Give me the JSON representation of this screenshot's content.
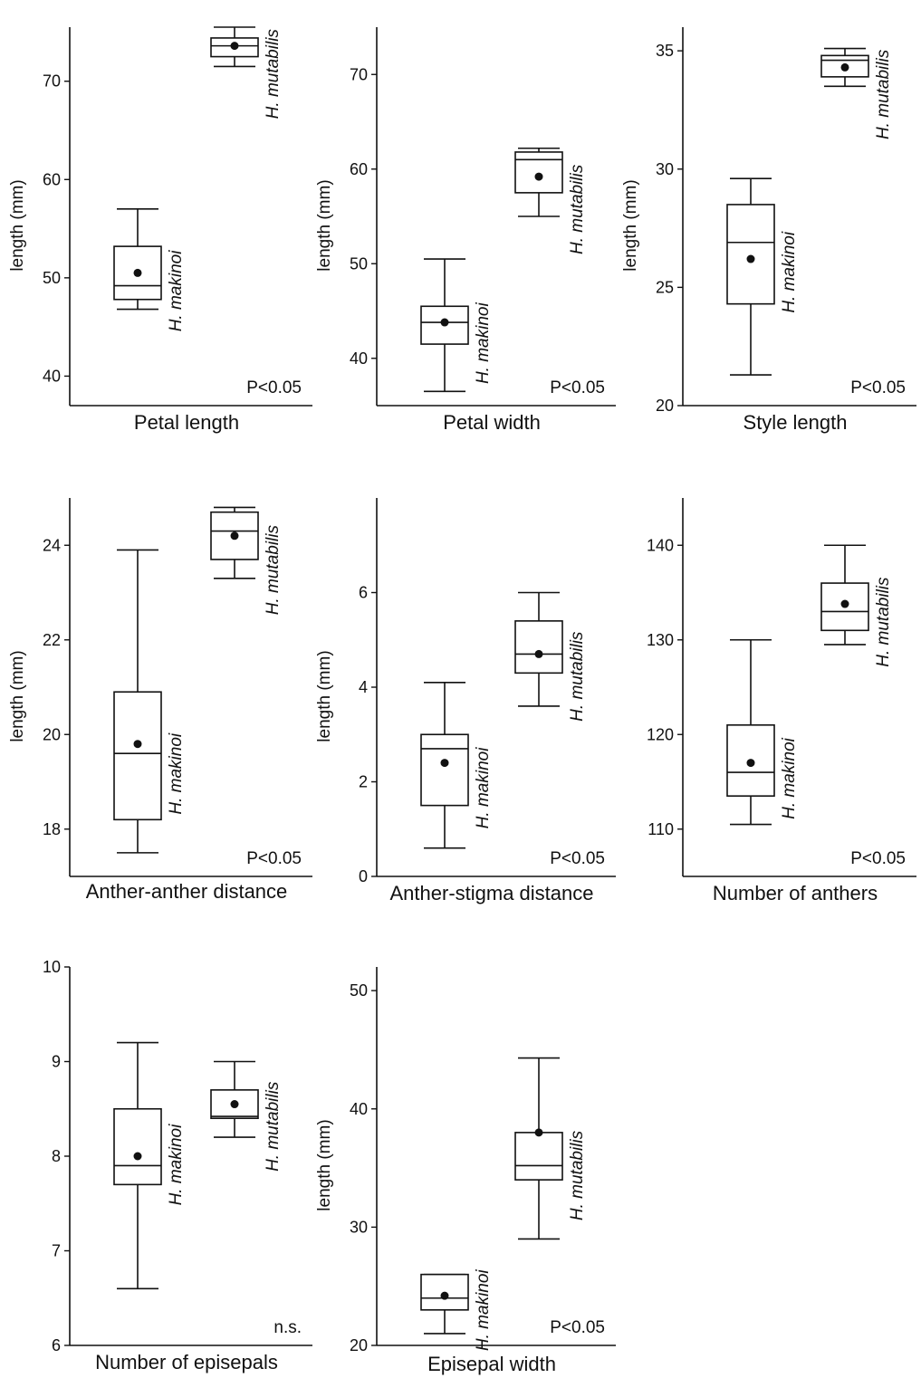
{
  "chart_data": [
    {
      "type": "box",
      "xlabel": "Petal length",
      "ylabel": "length (mm)",
      "ylim": [
        37,
        75
      ],
      "yticks": [
        40,
        50,
        60,
        70
      ],
      "significance": "P<0.05",
      "series": [
        {
          "name": "H. makinoi",
          "whisker_low": 46.8,
          "q1": 47.8,
          "median": 49.2,
          "q3": 53.2,
          "whisker_high": 57.0,
          "mean": 50.5
        },
        {
          "name": "H. mutabilis",
          "whisker_low": 71.5,
          "q1": 72.5,
          "median": 73.6,
          "q3": 74.4,
          "whisker_high": 75.5,
          "mean": 73.6
        }
      ]
    },
    {
      "type": "box",
      "xlabel": "Petal width",
      "ylabel": "length (mm)",
      "ylim": [
        35,
        75
      ],
      "yticks": [
        40,
        50,
        60,
        70
      ],
      "significance": "P<0.05",
      "series": [
        {
          "name": "H. makinoi",
          "whisker_low": 36.5,
          "q1": 41.5,
          "median": 43.8,
          "q3": 45.5,
          "whisker_high": 50.5,
          "mean": 43.8
        },
        {
          "name": "H. mutabilis",
          "whisker_low": 55.0,
          "q1": 57.5,
          "median": 61.0,
          "q3": 61.8,
          "whisker_high": 62.2,
          "mean": 59.2
        }
      ]
    },
    {
      "type": "box",
      "xlabel": "Style length",
      "ylabel": "length (mm)",
      "ylim": [
        20,
        36
      ],
      "yticks": [
        20,
        25,
        30,
        35
      ],
      "significance": "P<0.05",
      "series": [
        {
          "name": "H. makinoi",
          "whisker_low": 21.3,
          "q1": 24.3,
          "median": 26.9,
          "q3": 28.5,
          "whisker_high": 29.6,
          "mean": 26.2
        },
        {
          "name": "H. mutabilis",
          "whisker_low": 33.5,
          "q1": 33.9,
          "median": 34.6,
          "q3": 34.8,
          "whisker_high": 35.1,
          "mean": 34.3
        }
      ]
    },
    {
      "type": "box",
      "xlabel": "Anther-anther distance",
      "ylabel": "length (mm)",
      "ylim": [
        17,
        25
      ],
      "yticks": [
        18,
        20,
        22,
        24
      ],
      "significance": "P<0.05",
      "series": [
        {
          "name": "H. makinoi",
          "whisker_low": 17.5,
          "q1": 18.2,
          "median": 19.6,
          "q3": 20.9,
          "whisker_high": 23.9,
          "mean": 19.8
        },
        {
          "name": "H. mutabilis",
          "whisker_low": 23.3,
          "q1": 23.7,
          "median": 24.3,
          "q3": 24.7,
          "whisker_high": 24.8,
          "mean": 24.2
        }
      ]
    },
    {
      "type": "box",
      "xlabel": "Anther-stigma distance",
      "ylabel": "length (mm)",
      "ylim": [
        0,
        8
      ],
      "yticks": [
        0,
        2,
        4,
        6
      ],
      "significance": "P<0.05",
      "series": [
        {
          "name": "H. makinoi",
          "whisker_low": 0.6,
          "q1": 1.5,
          "median": 2.7,
          "q3": 3.0,
          "whisker_high": 4.1,
          "mean": 2.4
        },
        {
          "name": "H. mutabilis",
          "whisker_low": 3.6,
          "q1": 4.3,
          "median": 4.7,
          "q3": 5.4,
          "whisker_high": 6.0,
          "mean": 4.7
        }
      ]
    },
    {
      "type": "box",
      "xlabel": "Number of anthers",
      "ylabel": "",
      "ylim": [
        105,
        145
      ],
      "yticks": [
        110,
        120,
        130,
        140
      ],
      "significance": "P<0.05",
      "series": [
        {
          "name": "H. makinoi",
          "whisker_low": 110.5,
          "q1": 113.5,
          "median": 116.0,
          "q3": 121.0,
          "whisker_high": 130.0,
          "mean": 117.0
        },
        {
          "name": "H. mutabilis",
          "whisker_low": 129.5,
          "q1": 131.0,
          "median": 133.0,
          "q3": 136.0,
          "whisker_high": 140.0,
          "mean": 133.8
        }
      ]
    },
    {
      "type": "box",
      "xlabel": "Number of episepals",
      "ylabel": "",
      "ylim": [
        6,
        10
      ],
      "yticks": [
        6,
        7,
        8,
        9,
        10
      ],
      "significance": "n.s.",
      "series": [
        {
          "name": "H. makinoi",
          "whisker_low": 6.6,
          "q1": 7.7,
          "median": 7.9,
          "q3": 8.5,
          "whisker_high": 9.2,
          "mean": 8.0
        },
        {
          "name": "H. mutabilis",
          "whisker_low": 8.2,
          "q1": 8.4,
          "median": 8.42,
          "q3": 8.7,
          "whisker_high": 9.0,
          "mean": 8.55
        }
      ]
    },
    {
      "type": "box",
      "xlabel": "Episepal width",
      "ylabel": "length (mm)",
      "ylim": [
        20,
        52
      ],
      "yticks": [
        20,
        30,
        40,
        50
      ],
      "significance": "P<0.05",
      "series": [
        {
          "name": "H. makinoi",
          "whisker_low": 21.0,
          "q1": 23.0,
          "median": 24.0,
          "q3": 26.0,
          "whisker_high": 26.0,
          "mean": 24.2
        },
        {
          "name": "H. mutabilis",
          "whisker_low": 29.0,
          "q1": 34.0,
          "median": 35.2,
          "q3": 38.0,
          "whisker_high": 44.3,
          "mean": 38.0
        }
      ]
    }
  ]
}
